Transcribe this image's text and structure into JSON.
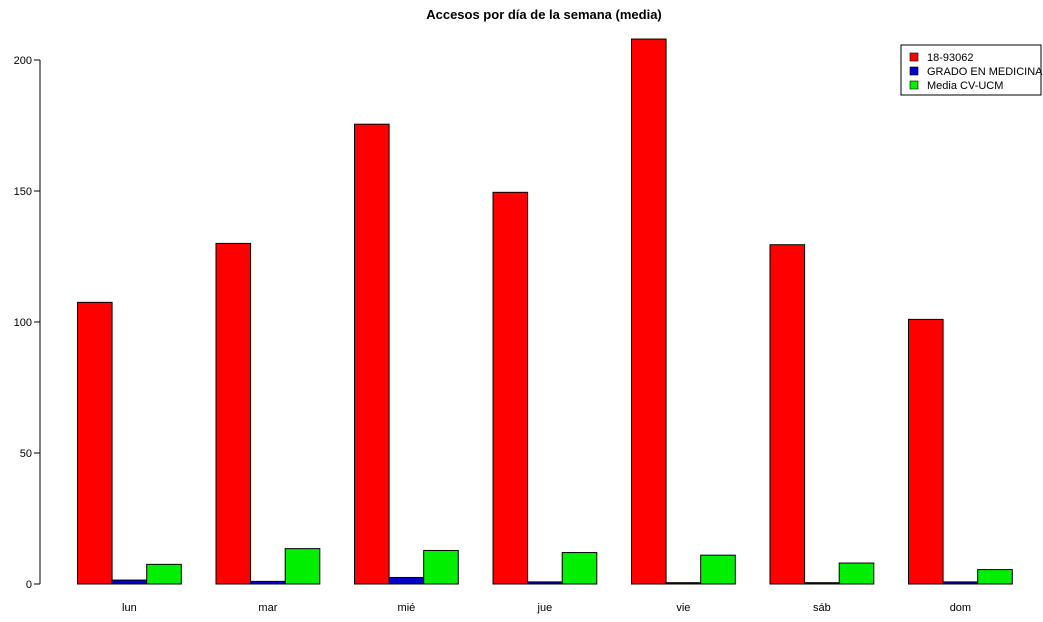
{
  "chart_data": {
    "type": "bar",
    "title": "Accesos por día de la semana (media)",
    "xlabel": "",
    "ylabel": "",
    "categories": [
      "lun",
      "mar",
      "mié",
      "jue",
      "vie",
      "sáb",
      "dom"
    ],
    "series": [
      {
        "name": "18-93062",
        "color": "#ff0000",
        "values": [
          107.5,
          130,
          175.5,
          149.5,
          208,
          129.5,
          101
        ]
      },
      {
        "name": "GRADO EN MEDICINA",
        "color": "#0000cc",
        "values": [
          1.5,
          1,
          2.5,
          0.8,
          0.5,
          0.5,
          0.8
        ]
      },
      {
        "name": "Media CV-UCM",
        "color": "#00ee00",
        "values": [
          7.5,
          13.5,
          12.8,
          12,
          11,
          8,
          5.5
        ]
      }
    ],
    "ylim": [
      0,
      200
    ],
    "yticks": [
      0,
      50,
      100,
      150,
      200
    ],
    "ytick_labels": [
      "0",
      "50",
      "100",
      "150",
      "200"
    ],
    "grid": false,
    "legend_position": "top-right"
  }
}
